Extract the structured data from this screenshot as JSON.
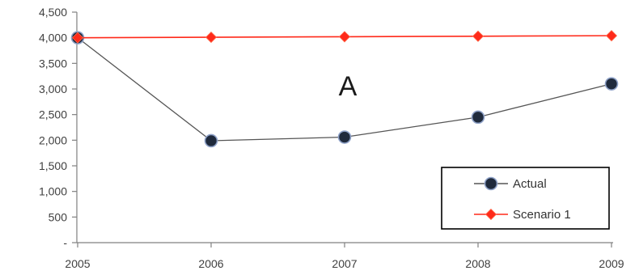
{
  "chart_data": {
    "type": "line",
    "title": "",
    "xlabel": "",
    "ylabel": "",
    "categories": [
      "2005",
      "2006",
      "2007",
      "2008",
      "2009"
    ],
    "series": [
      {
        "name": "Actual",
        "values": [
          4000,
          1990,
          2060,
          2450,
          3100
        ],
        "color": "#1f2a3c",
        "line_color": "#555555",
        "marker": "circle"
      },
      {
        "name": "Scenario 1",
        "values": [
          4000,
          4010,
          4020,
          4030,
          4040
        ],
        "color": "#ff2a1a",
        "line_color": "#ff2a1a",
        "marker": "diamond"
      }
    ],
    "y_ticks": [
      0,
      500,
      1000,
      1500,
      2000,
      2500,
      3000,
      3500,
      4000,
      4500
    ],
    "y_tick_labels": [
      "-",
      "500",
      "1,000",
      "1,500",
      "2,000",
      "2,500",
      "3,000",
      "3,500",
      "4,000",
      "4,500"
    ],
    "ylim": [
      0,
      4500
    ],
    "grid": false,
    "legend_position": "bottom-right",
    "annotation": "A"
  }
}
